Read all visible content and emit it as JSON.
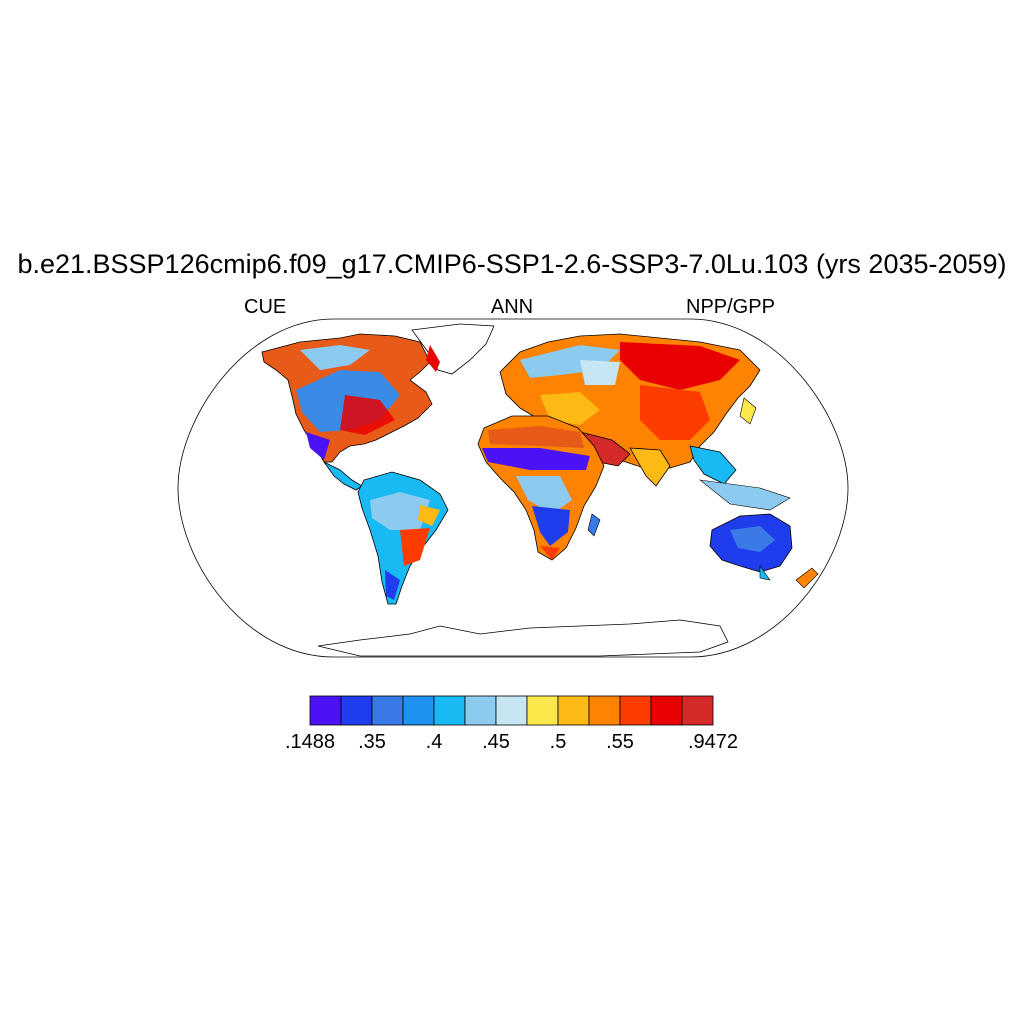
{
  "title": "b.e21.BSSP126cmip6.f09_g17.CMIP6-SSP1-2.6-SSP3-7.0Lu.103 (yrs 2035-2059)",
  "left_string": "CUE",
  "center_string": "ANN",
  "right_string": "NPP/GPP",
  "colorbar": {
    "colors": [
      "#4a12f5",
      "#1f3ded",
      "#3a7ae6",
      "#1f92ef",
      "#19baf3",
      "#8ccaf0",
      "#c6e6f4",
      "#fde84c",
      "#fdb914",
      "#fd8300",
      "#fd3c00",
      "#e90000",
      "#d42a2a"
    ],
    "labels": [
      ".1488",
      ".35",
      ".4",
      ".45",
      ".5",
      ".55",
      ".9472"
    ],
    "label_positions": [
      0,
      2,
      4,
      6,
      8,
      10,
      13
    ]
  },
  "map_colors": {
    "ocean": "#ffffff",
    "antarctica": "#ffffff",
    "coastline": "#000000"
  }
}
